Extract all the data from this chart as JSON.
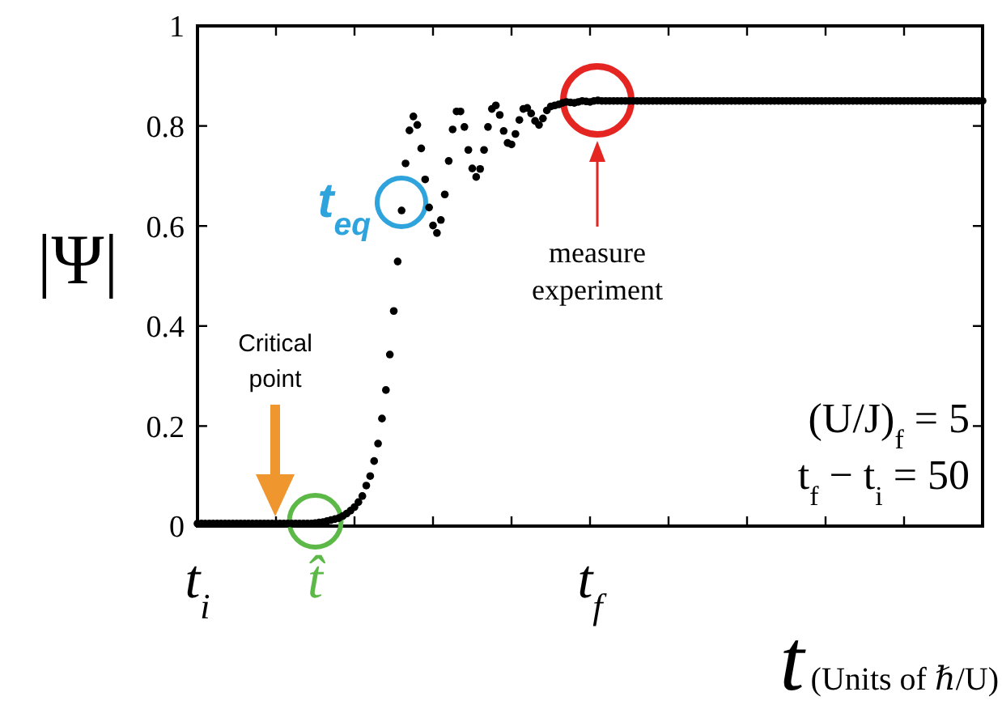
{
  "chart_data": {
    "type": "scatter",
    "xlabel": "t(Units of ℏ/U)",
    "ylabel": "|Ψ|",
    "ylim": [
      0,
      1
    ],
    "yticks": [
      0,
      0.2,
      0.4,
      0.6,
      0.8,
      1
    ],
    "marker": "circle",
    "annotations": [
      "Critical point",
      "t$_{eq}$",
      "measure experiment",
      "(U/J)$_{f}$ = 5",
      "t$_{f}$ − t$_{i}$ = 50"
    ],
    "categories": [
      "t$_{i}$",
      null,
      null,
      null,
      null,
      null,
      null,
      null,
      null,
      null,
      null,
      null,
      null,
      null,
      null,
      null,
      null,
      null,
      null,
      null,
      null,
      null,
      null,
      null,
      null,
      null,
      null,
      null,
      null,
      null,
      "t̂",
      null,
      null,
      null,
      null,
      null,
      null,
      null,
      null,
      null,
      null,
      null,
      null,
      null,
      null,
      null,
      null,
      null,
      null,
      null,
      null,
      null,
      null,
      null,
      null,
      null,
      null,
      null,
      null,
      null,
      null,
      null,
      null,
      null,
      null,
      null,
      null,
      null,
      null,
      null,
      null,
      null,
      null,
      null,
      null,
      null,
      null,
      null,
      null,
      null,
      null,
      null,
      null,
      null,
      null,
      null,
      null,
      null,
      null,
      null,
      null,
      null,
      null,
      null,
      null,
      null,
      null,
      null,
      null,
      null,
      "t$_{f}$",
      null,
      null,
      null,
      null,
      null,
      null,
      null,
      null,
      null,
      null,
      null,
      null,
      null,
      null,
      null,
      null,
      null,
      null,
      null,
      null,
      null,
      null,
      null,
      null,
      null,
      null,
      null,
      null,
      null,
      null,
      null,
      null,
      null,
      null,
      null,
      null,
      null,
      null,
      null,
      null,
      null,
      null,
      null,
      null,
      null,
      null,
      null,
      null,
      null,
      null,
      null,
      null,
      null,
      null,
      null,
      null,
      null,
      null,
      null,
      null,
      null,
      null,
      null,
      null,
      null,
      null,
      null,
      null,
      null,
      null,
      null,
      null,
      null,
      null,
      null,
      null,
      null,
      null,
      null,
      null,
      null,
      null,
      null,
      null,
      null,
      null,
      null,
      null,
      null,
      null,
      null,
      null,
      null,
      null,
      null,
      null,
      null,
      null,
      null,
      null
    ],
    "series": [
      {
        "color": "#000000",
        "values": [
          0.005,
          0.005,
          0.005,
          0.005,
          0.005,
          0.005,
          0.005,
          0.005,
          0.005,
          0.005,
          0.005,
          0.005,
          0.005,
          0.005,
          0.005,
          0.005,
          0.005,
          0.005,
          0.005,
          0.005,
          0.005,
          0.005,
          0.005,
          0.005,
          0.005,
          0.005,
          0.005,
          0.005,
          0.005,
          0.005,
          0.006,
          0.007,
          0.008,
          0.01,
          0.012,
          0.014,
          0.016,
          0.02,
          0.025,
          0.031,
          0.038,
          0.048,
          0.06,
          0.081,
          0.1,
          0.13,
          0.165,
          0.215,
          0.272,
          0.343,
          0.43,
          0.529,
          0.631,
          0.725,
          0.791,
          0.819,
          0.802,
          0.755,
          0.693,
          0.637,
          0.601,
          0.586,
          0.612,
          0.663,
          0.73,
          0.793,
          0.829,
          0.829,
          0.798,
          0.752,
          0.715,
          0.698,
          0.714,
          0.752,
          0.798,
          0.834,
          0.841,
          0.822,
          0.79,
          0.766,
          0.763,
          0.784,
          0.812,
          0.834,
          0.836,
          0.825,
          0.81,
          0.802,
          0.815,
          0.831,
          0.839,
          0.841,
          0.843,
          0.846,
          0.848,
          0.847,
          0.846,
          0.848,
          0.85,
          0.849,
          0.848,
          0.85,
          0.851,
          0.85,
          0.85,
          0.85,
          0.85,
          0.85,
          0.85,
          0.85,
          0.85,
          0.85,
          0.85,
          0.85,
          0.85,
          0.85,
          0.85,
          0.85,
          0.85,
          0.85,
          0.85,
          0.85,
          0.85,
          0.85,
          0.85,
          0.85,
          0.85,
          0.85,
          0.85,
          0.85,
          0.85,
          0.85,
          0.85,
          0.85,
          0.85,
          0.85,
          0.85,
          0.85,
          0.85,
          0.85,
          0.85,
          0.85,
          0.85,
          0.85,
          0.85,
          0.85,
          0.85,
          0.85,
          0.85,
          0.85,
          0.85,
          0.85,
          0.85,
          0.85,
          0.85,
          0.85,
          0.85,
          0.85,
          0.85,
          0.85,
          0.85,
          0.85,
          0.85,
          0.85,
          0.85,
          0.85,
          0.85,
          0.85,
          0.85,
          0.85,
          0.85,
          0.85,
          0.85,
          0.85,
          0.85,
          0.85,
          0.85,
          0.85,
          0.85,
          0.85,
          0.85,
          0.85,
          0.85,
          0.85,
          0.85,
          0.85,
          0.85,
          0.85,
          0.85,
          0.85,
          0.85,
          0.85,
          0.85,
          0.85,
          0.85,
          0.85,
          0.85,
          0.85,
          0.85,
          0.85,
          0.85
        ]
      }
    ]
  }
}
